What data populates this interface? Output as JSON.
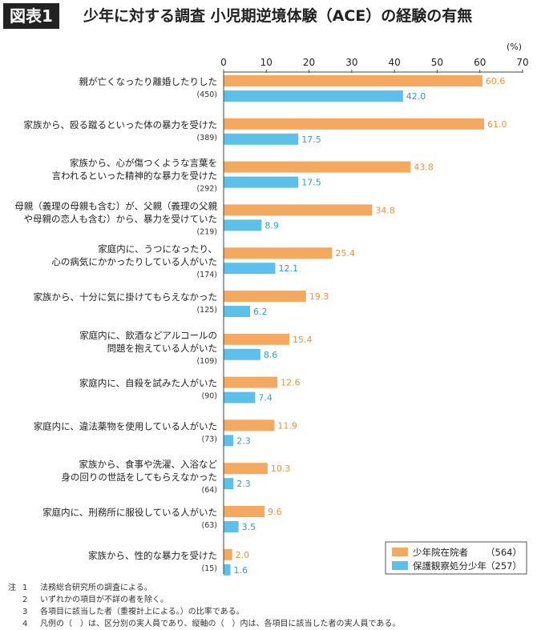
{
  "header": {
    "figure_label": "図表1",
    "title": "少年に対する調査 小児期逆境体験（ACE）の経験の有無"
  },
  "chart_data": {
    "type": "bar",
    "orientation": "horizontal",
    "unit": "(%)",
    "xlim": [
      0,
      70
    ],
    "xticks": [
      0,
      10,
      20,
      30,
      40,
      50,
      60,
      70
    ],
    "grid": false,
    "legend_position": "bottom-right",
    "categories": [
      {
        "lines": [
          "親が亡くなったり離婚したりした"
        ],
        "n": "(450)"
      },
      {
        "lines": [
          "家族から、殴る蹴るといった体の暴力を受けた"
        ],
        "n": "(389)"
      },
      {
        "lines": [
          "家族から、心が傷つくような言葉を",
          "言われるといった精神的な暴力を受けた"
        ],
        "n": "(292)"
      },
      {
        "lines": [
          "母親（義理の母親も含む）が、父親（義理の父親",
          "や母親の恋人も含む）から、暴力を受けていた"
        ],
        "n": "(219)"
      },
      {
        "lines": [
          "家庭内に、うつになったり、",
          "心の病気にかかったりしている人がいた"
        ],
        "n": "(174)"
      },
      {
        "lines": [
          "家族から、十分に気に掛けてもらえなかった"
        ],
        "n": "(125)"
      },
      {
        "lines": [
          "家庭内に、飲酒などアルコールの",
          "問題を抱えている人がいた"
        ],
        "n": "(109)"
      },
      {
        "lines": [
          "家庭内に、自殺を試みた人がいた"
        ],
        "n": "(90)"
      },
      {
        "lines": [
          "家庭内に、違法薬物を使用している人がいた"
        ],
        "n": "(73)"
      },
      {
        "lines": [
          "家族から、食事や洗濯、入浴など",
          "身の回りの世話をしてもらえなかった"
        ],
        "n": "(64)"
      },
      {
        "lines": [
          "家庭内に、刑務所に服役している人がいた"
        ],
        "n": "(63)"
      },
      {
        "lines": [
          "家族から、性的な暴力を受けた"
        ],
        "n": "(15)"
      }
    ],
    "series": [
      {
        "name": "少年院在院者",
        "count": "（564）",
        "color": "#f5a95f",
        "label_color": "#e8943c",
        "values": [
          60.6,
          61.0,
          43.8,
          34.8,
          25.4,
          19.3,
          15.4,
          12.6,
          11.9,
          10.3,
          9.6,
          2.0
        ]
      },
      {
        "name": "保護観察処分少年",
        "count": "（257）",
        "color": "#5bc0ea",
        "label_color": "#2a9fd6",
        "values": [
          42.0,
          17.5,
          17.5,
          8.9,
          12.1,
          6.2,
          8.6,
          7.4,
          2.3,
          2.3,
          3.5,
          1.6
        ]
      }
    ]
  },
  "notes": {
    "head": "注",
    "items": [
      {
        "num": "1",
        "text": "法務総合研究所の調査による。"
      },
      {
        "num": "2",
        "text": "いずれかの項目が不詳の者を除く。"
      },
      {
        "num": "3",
        "text": "各項目に該当した者（重複計上による。）の比率である。"
      },
      {
        "num": "4",
        "text": "凡例の（　）は、区分別の実人員であり、縦軸の（　）内は、各項目に該当した者の実人員である。"
      }
    ]
  }
}
